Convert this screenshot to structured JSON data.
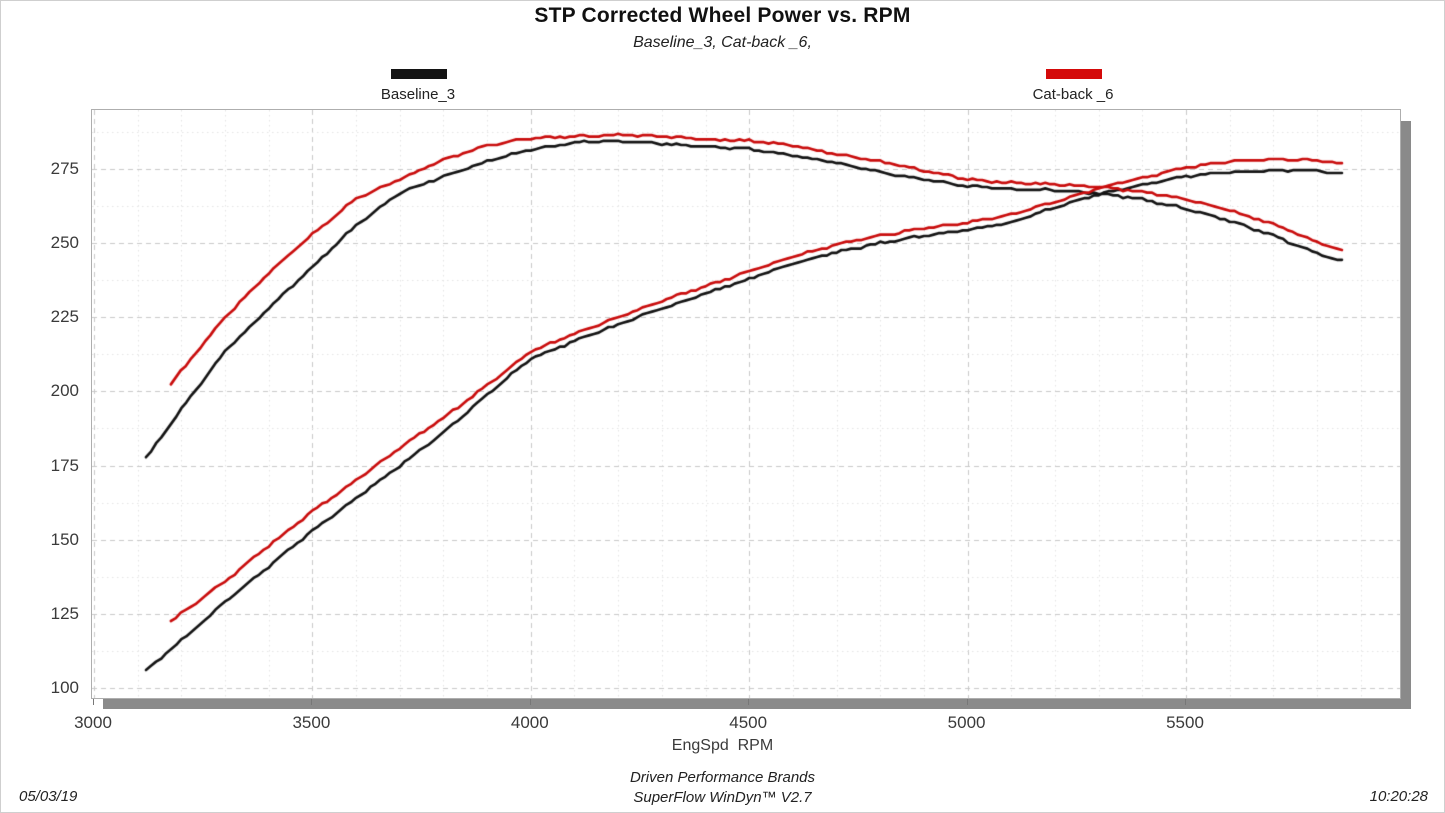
{
  "page": {
    "title": "STP Corrected Wheel Power vs. RPM",
    "subtitle": "Baseline_3, Cat-back _6,",
    "xaxis_title": "EngSpd  RPM",
    "footer_brand": "Driven Performance Brands",
    "footer_software": "SuperFlow WinDyn™ V2.7",
    "date": "05/03/19",
    "time": "10:20:28"
  },
  "legend": {
    "items": [
      {
        "label": "Baseline_3",
        "color": "#141414"
      },
      {
        "label": "Cat-back _6",
        "color": "#d40a0a"
      }
    ],
    "position": "above plot, left and right"
  },
  "chart_data": {
    "type": "line",
    "title": "STP Corrected Wheel Power vs. RPM",
    "subtitle": "Baseline_3, Cat-back _6,",
    "xlabel": "EngSpd RPM",
    "ylabel": "",
    "xlim": [
      3000,
      5990
    ],
    "ylim": [
      97,
      295
    ],
    "x_ticks": [
      3000,
      3500,
      4000,
      4500,
      5000,
      5500
    ],
    "y_ticks": [
      100,
      125,
      150,
      175,
      200,
      225,
      250,
      275
    ],
    "grid": {
      "major_x_step_rpm": 500,
      "minor_x_step_rpm": 100,
      "major_y_step": 25,
      "minor_y_step": 12.5,
      "major_style": "dashed light gray",
      "minor_style": "dotted lighter gray"
    },
    "legend_position": "top",
    "series": [
      {
        "name": "Baseline_3 peaking curve (torque-like)",
        "run": "Baseline_3",
        "role": "peaking",
        "color": "#141414",
        "points": [
          [
            3119,
            177.5
          ],
          [
            3200,
            194
          ],
          [
            3300,
            213.5
          ],
          [
            3400,
            228
          ],
          [
            3500,
            242
          ],
          [
            3600,
            256
          ],
          [
            3700,
            267
          ],
          [
            3800,
            272.5
          ],
          [
            3900,
            277.5
          ],
          [
            4000,
            281.5
          ],
          [
            4100,
            284
          ],
          [
            4200,
            284.5
          ],
          [
            4300,
            283.5
          ],
          [
            4400,
            282.5
          ],
          [
            4500,
            281.8
          ],
          [
            4600,
            279.5
          ],
          [
            4700,
            277
          ],
          [
            4800,
            274
          ],
          [
            4900,
            271.5
          ],
          [
            5000,
            269.3
          ],
          [
            5100,
            268.3
          ],
          [
            5200,
            267.8
          ],
          [
            5300,
            266.8
          ],
          [
            5400,
            264.8
          ],
          [
            5500,
            261.5
          ],
          [
            5600,
            257.5
          ],
          [
            5700,
            252.5
          ],
          [
            5800,
            246.5
          ],
          [
            5857,
            244
          ]
        ]
      },
      {
        "name": "Baseline_3 rising curve (power)",
        "run": "Baseline_3",
        "role": "rising",
        "color": "#141414",
        "points": [
          [
            3119,
            106
          ],
          [
            3200,
            116
          ],
          [
            3300,
            129
          ],
          [
            3400,
            141
          ],
          [
            3500,
            153
          ],
          [
            3600,
            164
          ],
          [
            3700,
            175
          ],
          [
            3800,
            186
          ],
          [
            3900,
            199
          ],
          [
            4000,
            211
          ],
          [
            4100,
            217
          ],
          [
            4200,
            222.5
          ],
          [
            4300,
            228
          ],
          [
            4400,
            233
          ],
          [
            4500,
            238
          ],
          [
            4600,
            243
          ],
          [
            4700,
            247
          ],
          [
            4800,
            250
          ],
          [
            4900,
            252.5
          ],
          [
            5000,
            254.5
          ],
          [
            5100,
            257
          ],
          [
            5200,
            262
          ],
          [
            5300,
            266.5
          ],
          [
            5400,
            269.5
          ],
          [
            5500,
            272.5
          ],
          [
            5600,
            274
          ],
          [
            5700,
            274.5
          ],
          [
            5800,
            274.5
          ],
          [
            5857,
            273.3
          ]
        ]
      },
      {
        "name": "Cat-back _6 peaking curve (torque-like)",
        "run": "Cat-back _6",
        "role": "peaking",
        "color": "#c90d0d",
        "points": [
          [
            3176,
            202.5
          ],
          [
            3300,
            225
          ],
          [
            3400,
            240
          ],
          [
            3500,
            253
          ],
          [
            3600,
            265
          ],
          [
            3700,
            271.5
          ],
          [
            3800,
            278
          ],
          [
            3900,
            283
          ],
          [
            4000,
            285.5
          ],
          [
            4100,
            286
          ],
          [
            4200,
            286.5
          ],
          [
            4300,
            286
          ],
          [
            4400,
            285
          ],
          [
            4500,
            284.5
          ],
          [
            4600,
            283
          ],
          [
            4700,
            280
          ],
          [
            4800,
            277.5
          ],
          [
            4900,
            274.5
          ],
          [
            5000,
            271.5
          ],
          [
            5100,
            270.3
          ],
          [
            5200,
            269.8
          ],
          [
            5300,
            269
          ],
          [
            5400,
            267.3
          ],
          [
            5500,
            264.8
          ],
          [
            5600,
            261
          ],
          [
            5700,
            256.5
          ],
          [
            5800,
            250.5
          ],
          [
            5857,
            247.3
          ]
        ]
      },
      {
        "name": "Cat-back _6 rising curve (power)",
        "run": "Cat-back _6",
        "role": "rising",
        "color": "#c90d0d",
        "points": [
          [
            3176,
            122.5
          ],
          [
            3300,
            136
          ],
          [
            3400,
            148
          ],
          [
            3500,
            159.5
          ],
          [
            3600,
            170
          ],
          [
            3700,
            181
          ],
          [
            3800,
            191
          ],
          [
            3900,
            202
          ],
          [
            4000,
            213.5
          ],
          [
            4100,
            219.5
          ],
          [
            4200,
            225
          ],
          [
            4300,
            230.5
          ],
          [
            4400,
            235.5
          ],
          [
            4500,
            240.5
          ],
          [
            4600,
            245.5
          ],
          [
            4700,
            249.5
          ],
          [
            4800,
            252.5
          ],
          [
            4900,
            255
          ],
          [
            5000,
            257
          ],
          [
            5100,
            259.5
          ],
          [
            5200,
            264
          ],
          [
            5300,
            268.5
          ],
          [
            5400,
            272
          ],
          [
            5500,
            275.5
          ],
          [
            5600,
            277.5
          ],
          [
            5700,
            278.3
          ],
          [
            5800,
            278
          ],
          [
            5857,
            276.7
          ]
        ]
      }
    ]
  }
}
